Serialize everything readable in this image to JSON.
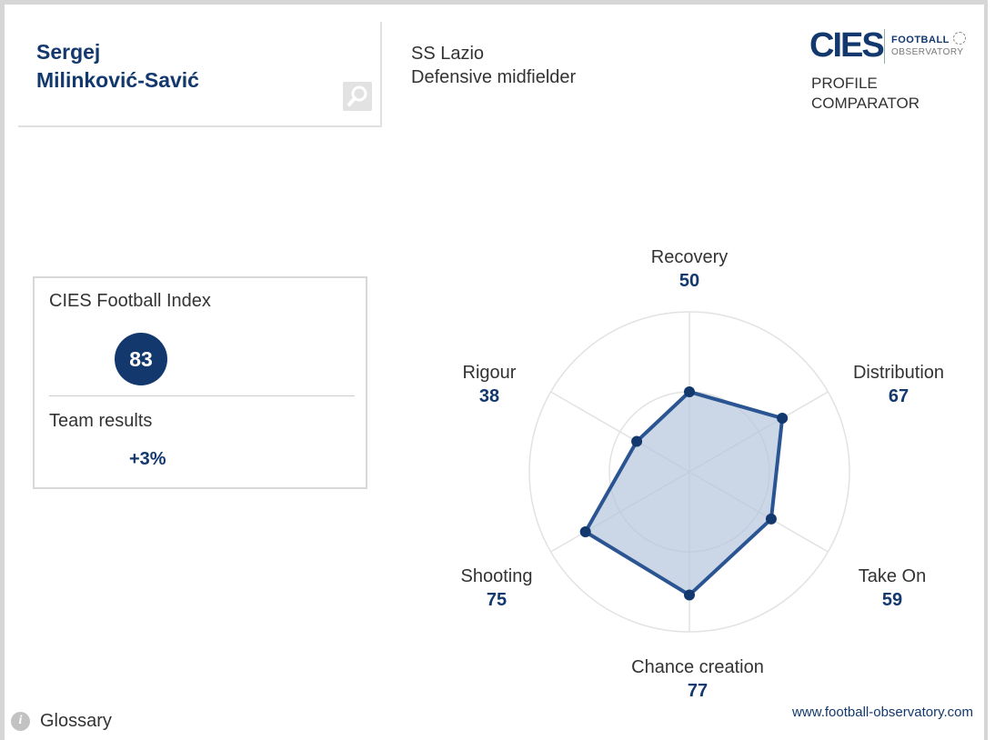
{
  "player": {
    "name_line1": "Sergej",
    "name_line2": "Milinković-Savić"
  },
  "club": {
    "name": "SS Lazio",
    "position": "Defensive midfielder"
  },
  "logo": {
    "text": "CIES",
    "tagline1": "FOOTBALL",
    "tagline2": "OBSERVATORY"
  },
  "app": {
    "title_line1": "PROFILE",
    "title_line2": "COMPARATOR"
  },
  "index": {
    "label": "CIES Football Index",
    "value": "83",
    "team_label": "Team results",
    "team_value": "+3%"
  },
  "chart_data": {
    "type": "radar",
    "max": 100,
    "axes": [
      {
        "name": "Recovery",
        "value": 50
      },
      {
        "name": "Distribution",
        "value": 67
      },
      {
        "name": "Take On",
        "value": 59
      },
      {
        "name": "Chance creation",
        "value": 77
      },
      {
        "name": "Shooting",
        "value": 75
      },
      {
        "name": "Rigour",
        "value": 38
      }
    ],
    "rings": [
      50,
      100
    ],
    "colors": {
      "line": "#2a5592",
      "fill": "#b5c6db",
      "point": "#12386d",
      "grid": "#e2e2e2"
    }
  },
  "footer": {
    "glossary": "Glossary",
    "info_icon": "i",
    "website": "www.football-observatory.com"
  },
  "icons": {
    "search": "search-icon",
    "info": "info-icon"
  }
}
